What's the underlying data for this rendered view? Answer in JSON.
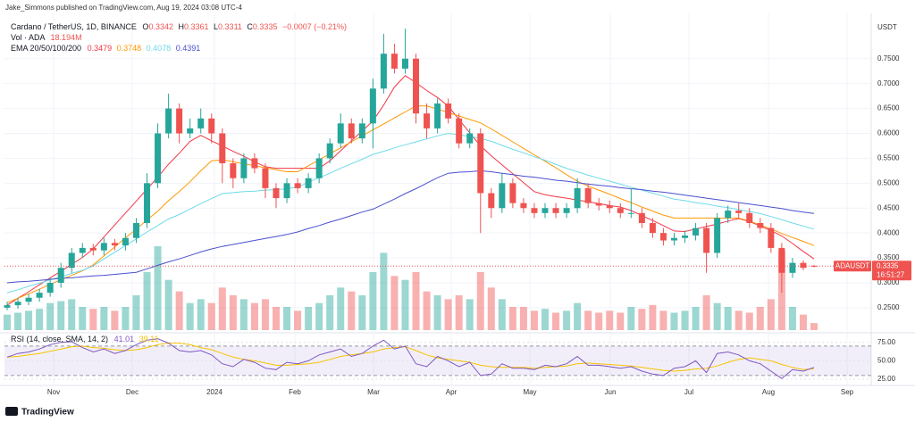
{
  "header": {
    "publisher": "Jake_Simmons published on TradingView.com, Aug 19, 2024 03:08 UTC-4"
  },
  "chart_data": {
    "type": "candlestick",
    "title": "Cardano / TetherUS, 1D, BINANCE",
    "ohlc_labels": [
      "O",
      "H",
      "L",
      "C"
    ],
    "change": "−0.0007 (−0.21%)",
    "up_color": "#26a69a",
    "down_color": "#ef5350",
    "grid": true,
    "open": [
      0.25,
      0.255,
      0.262,
      0.27,
      0.28,
      0.3,
      0.33,
      0.36,
      0.37,
      0.365,
      0.38,
      0.375,
      0.39,
      0.42,
      0.5,
      0.6,
      0.65,
      0.6,
      0.61,
      0.63,
      0.6,
      0.54,
      0.51,
      0.55,
      0.53,
      0.49,
      0.47,
      0.5,
      0.49,
      0.51,
      0.55,
      0.58,
      0.62,
      0.59,
      0.62,
      0.69,
      0.76,
      0.73,
      0.75,
      0.64,
      0.61,
      0.66,
      0.63,
      0.58,
      0.6,
      0.48,
      0.45,
      0.5,
      0.46,
      0.45,
      0.44,
      0.45,
      0.44,
      0.45,
      0.49,
      0.46,
      0.455,
      0.45,
      0.44,
      0.44,
      0.42,
      0.4,
      0.385,
      0.39,
      0.395,
      0.41,
      0.36,
      0.43,
      0.445,
      0.44,
      0.42,
      0.41,
      0.37,
      0.32,
      0.34,
      0.3342
    ],
    "high": [
      0.262,
      0.27,
      0.278,
      0.288,
      0.31,
      0.34,
      0.37,
      0.38,
      0.378,
      0.39,
      0.388,
      0.4,
      0.43,
      0.52,
      0.62,
      0.68,
      0.66,
      0.63,
      0.65,
      0.64,
      0.61,
      0.55,
      0.56,
      0.56,
      0.54,
      0.5,
      0.51,
      0.51,
      0.52,
      0.56,
      0.59,
      0.64,
      0.63,
      0.63,
      0.71,
      0.8,
      0.78,
      0.81,
      0.76,
      0.66,
      0.67,
      0.67,
      0.64,
      0.61,
      0.61,
      0.49,
      0.52,
      0.51,
      0.47,
      0.46,
      0.46,
      0.46,
      0.46,
      0.51,
      0.5,
      0.47,
      0.465,
      0.46,
      0.49,
      0.45,
      0.43,
      0.41,
      0.4,
      0.405,
      0.42,
      0.42,
      0.44,
      0.455,
      0.46,
      0.45,
      0.43,
      0.42,
      0.38,
      0.35,
      0.345,
      0.3361
    ],
    "low": [
      0.245,
      0.248,
      0.255,
      0.262,
      0.272,
      0.29,
      0.32,
      0.35,
      0.355,
      0.355,
      0.365,
      0.365,
      0.38,
      0.41,
      0.49,
      0.59,
      0.58,
      0.59,
      0.6,
      0.58,
      0.5,
      0.49,
      0.5,
      0.52,
      0.47,
      0.45,
      0.46,
      0.48,
      0.48,
      0.5,
      0.54,
      0.57,
      0.58,
      0.58,
      0.57,
      0.68,
      0.72,
      0.72,
      0.62,
      0.59,
      0.6,
      0.62,
      0.57,
      0.57,
      0.4,
      0.43,
      0.44,
      0.45,
      0.44,
      0.43,
      0.43,
      0.43,
      0.43,
      0.44,
      0.45,
      0.445,
      0.44,
      0.43,
      0.43,
      0.41,
      0.39,
      0.375,
      0.375,
      0.38,
      0.385,
      0.32,
      0.35,
      0.42,
      0.43,
      0.41,
      0.4,
      0.36,
      0.28,
      0.31,
      0.325,
      0.3311
    ],
    "close": [
      0.255,
      0.262,
      0.27,
      0.28,
      0.3,
      0.33,
      0.36,
      0.37,
      0.365,
      0.38,
      0.375,
      0.39,
      0.42,
      0.5,
      0.6,
      0.65,
      0.6,
      0.61,
      0.63,
      0.6,
      0.54,
      0.51,
      0.55,
      0.53,
      0.49,
      0.47,
      0.5,
      0.49,
      0.51,
      0.55,
      0.58,
      0.62,
      0.59,
      0.62,
      0.69,
      0.76,
      0.73,
      0.75,
      0.64,
      0.61,
      0.66,
      0.63,
      0.58,
      0.6,
      0.48,
      0.45,
      0.5,
      0.46,
      0.45,
      0.44,
      0.45,
      0.44,
      0.45,
      0.49,
      0.46,
      0.455,
      0.45,
      0.44,
      0.44,
      0.42,
      0.4,
      0.385,
      0.39,
      0.395,
      0.41,
      0.36,
      0.43,
      0.445,
      0.44,
      0.42,
      0.41,
      0.37,
      0.32,
      0.34,
      0.33,
      0.3335
    ],
    "ylim": [
      0.205,
      0.832
    ],
    "yticks": [
      {
        "value": 0.25,
        "label": "0.2500"
      },
      {
        "value": 0.3,
        "label": "0.3000"
      },
      {
        "value": 0.35,
        "label": "0.3500"
      },
      {
        "value": 0.4,
        "label": "0.4000"
      },
      {
        "value": 0.45,
        "label": "0.4500"
      },
      {
        "value": 0.5,
        "label": "0.5000"
      },
      {
        "value": 0.55,
        "label": "0.5500"
      },
      {
        "value": 0.6,
        "label": "0.6000"
      },
      {
        "value": 0.65,
        "label": "0.6500"
      },
      {
        "value": 0.7,
        "label": "0.7000"
      },
      {
        "value": 0.75,
        "label": "0.7500"
      }
    ],
    "xtick_labels": [
      "Nov",
      "Dec",
      "2024",
      "Feb",
      "Mar",
      "Apr",
      "May",
      "Jun",
      "Jul",
      "Aug",
      "Sep"
    ],
    "price_axis_label": "USDT",
    "symbol": "ADAUSDT",
    "countdown": "16:51:27",
    "volume": {
      "name": "Vol · ADA",
      "last_label": "18.194M",
      "vlim": [
        0,
        300
      ],
      "values": [
        40,
        45,
        50,
        55,
        70,
        75,
        80,
        60,
        55,
        60,
        50,
        60,
        90,
        150,
        217,
        130,
        100,
        70,
        80,
        70,
        110,
        90,
        80,
        70,
        80,
        60,
        60,
        50,
        60,
        70,
        90,
        110,
        100,
        90,
        150,
        200,
        140,
        130,
        150,
        100,
        90,
        80,
        90,
        80,
        150,
        110,
        80,
        60,
        60,
        50,
        55,
        45,
        50,
        70,
        50,
        45,
        50,
        45,
        60,
        55,
        65,
        50,
        45,
        50,
        60,
        90,
        70,
        60,
        50,
        45,
        60,
        80,
        205,
        60,
        40,
        18.194
      ]
    },
    "ema": {
      "name": "EMA 20/50/100/200",
      "series": [
        {
          "color": "#f23645",
          "values": [
            0.255,
            0.269,
            0.282,
            0.296,
            0.31,
            0.323,
            0.337,
            0.351,
            0.368,
            0.392,
            0.416,
            0.44,
            0.464,
            0.488,
            0.512,
            0.538,
            0.56,
            0.584,
            0.596,
            0.585,
            0.575,
            0.564,
            0.554,
            0.543,
            0.533,
            0.53,
            0.53,
            0.53,
            0.53,
            0.53,
            0.545,
            0.565,
            0.585,
            0.605,
            0.625,
            0.657,
            0.693,
            0.716,
            0.702,
            0.686,
            0.672,
            0.655,
            0.628,
            0.601,
            0.575,
            0.555,
            0.537,
            0.519,
            0.501,
            0.483,
            0.477,
            0.473,
            0.47,
            0.466,
            0.463,
            0.459,
            0.455,
            0.452,
            0.445,
            0.435,
            0.425,
            0.415,
            0.404,
            0.403,
            0.408,
            0.413,
            0.418,
            0.424,
            0.429,
            0.423,
            0.414,
            0.405,
            0.394,
            0.379,
            0.363,
            0.3479
          ]
        },
        {
          "color": "#ff9800",
          "values": [
            0.26,
            0.269,
            0.278,
            0.287,
            0.297,
            0.306,
            0.315,
            0.324,
            0.336,
            0.354,
            0.372,
            0.39,
            0.408,
            0.426,
            0.444,
            0.465,
            0.483,
            0.503,
            0.525,
            0.545,
            0.547,
            0.543,
            0.539,
            0.535,
            0.531,
            0.527,
            0.523,
            0.523,
            0.535,
            0.547,
            0.559,
            0.571,
            0.583,
            0.595,
            0.607,
            0.619,
            0.631,
            0.643,
            0.655,
            0.655,
            0.649,
            0.642,
            0.635,
            0.628,
            0.621,
            0.609,
            0.596,
            0.583,
            0.57,
            0.557,
            0.544,
            0.531,
            0.517,
            0.504,
            0.494,
            0.486,
            0.478,
            0.469,
            0.461,
            0.452,
            0.444,
            0.436,
            0.43,
            0.43,
            0.43,
            0.43,
            0.43,
            0.43,
            0.43,
            0.424,
            0.416,
            0.408,
            0.399,
            0.391,
            0.383,
            0.3748
          ]
        },
        {
          "color": "#6fdbea",
          "values": [
            0.28,
            0.286,
            0.293,
            0.299,
            0.306,
            0.312,
            0.319,
            0.325,
            0.334,
            0.348,
            0.361,
            0.375,
            0.388,
            0.402,
            0.415,
            0.428,
            0.437,
            0.448,
            0.459,
            0.469,
            0.479,
            0.481,
            0.483,
            0.484,
            0.486,
            0.487,
            0.489,
            0.492,
            0.502,
            0.511,
            0.52,
            0.53,
            0.539,
            0.548,
            0.558,
            0.564,
            0.571,
            0.577,
            0.583,
            0.589,
            0.595,
            0.6,
            0.597,
            0.594,
            0.59,
            0.584,
            0.576,
            0.568,
            0.561,
            0.553,
            0.546,
            0.538,
            0.53,
            0.523,
            0.516,
            0.51,
            0.504,
            0.498,
            0.492,
            0.486,
            0.48,
            0.474,
            0.468,
            0.465,
            0.461,
            0.458,
            0.454,
            0.451,
            0.447,
            0.443,
            0.439,
            0.433,
            0.427,
            0.42,
            0.414,
            0.4078
          ]
        },
        {
          "color": "#4a4fd0",
          "values": [
            0.3,
            0.302,
            0.303,
            0.305,
            0.307,
            0.309,
            0.31,
            0.312,
            0.314,
            0.315,
            0.317,
            0.319,
            0.321,
            0.328,
            0.335,
            0.342,
            0.348,
            0.355,
            0.362,
            0.368,
            0.373,
            0.377,
            0.381,
            0.385,
            0.389,
            0.393,
            0.397,
            0.402,
            0.409,
            0.415,
            0.422,
            0.428,
            0.435,
            0.442,
            0.448,
            0.458,
            0.468,
            0.479,
            0.489,
            0.5,
            0.511,
            0.52,
            0.522,
            0.523,
            0.525,
            0.523,
            0.52,
            0.517,
            0.514,
            0.512,
            0.509,
            0.506,
            0.504,
            0.501,
            0.498,
            0.496,
            0.494,
            0.491,
            0.489,
            0.487,
            0.484,
            0.482,
            0.479,
            0.476,
            0.473,
            0.47,
            0.467,
            0.464,
            0.461,
            0.458,
            0.455,
            0.452,
            0.449,
            0.445,
            0.442,
            0.4391
          ]
        }
      ]
    },
    "rsi": {
      "name": "RSI (14, close, SMA, 14, 2)",
      "color": "#7e57c2",
      "ylim": [
        19,
        82
      ],
      "band": [
        30,
        70
      ],
      "yticks": [
        {
          "value": 25,
          "label": "25.00"
        },
        {
          "value": 50,
          "label": "50.00"
        },
        {
          "value": 75,
          "label": "75.00"
        }
      ],
      "values": [
        55,
        60,
        62,
        66,
        72,
        75,
        76,
        68,
        62,
        66,
        60,
        64,
        72,
        78,
        80,
        74,
        64,
        62,
        64,
        58,
        46,
        42,
        52,
        48,
        40,
        38,
        48,
        46,
        50,
        58,
        62,
        66,
        56,
        60,
        70,
        78,
        66,
        70,
        46,
        42,
        56,
        50,
        42,
        48,
        30,
        32,
        46,
        40,
        40,
        38,
        44,
        42,
        46,
        56,
        44,
        44,
        42,
        40,
        42,
        36,
        32,
        30,
        40,
        42,
        50,
        34,
        60,
        62,
        58,
        50,
        46,
        36,
        26,
        38,
        36,
        41.01
      ],
      "ma": {
        "color": "#f5c400",
        "values": [
          55,
          56,
          58,
          60,
          63,
          66,
          69,
          70,
          68,
          67,
          65,
          64,
          65,
          68,
          72,
          74,
          74,
          72,
          68,
          65,
          60,
          55,
          52,
          50,
          47,
          44,
          44,
          45,
          46,
          48,
          52,
          56,
          58,
          60,
          62,
          66,
          68,
          69,
          64,
          58,
          54,
          52,
          50,
          48,
          44,
          42,
          41,
          41,
          41,
          40,
          41,
          42,
          43,
          46,
          47,
          46,
          45,
          44,
          43,
          41,
          39,
          37,
          36,
          37,
          39,
          40,
          43,
          48,
          52,
          54,
          52,
          50,
          45,
          41,
          38,
          39.11
        ]
      }
    }
  },
  "footer": {
    "brand": "TradingView"
  }
}
